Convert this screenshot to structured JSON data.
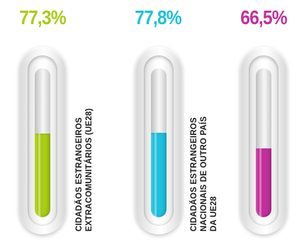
{
  "chart_data": {
    "type": "bar",
    "orientation": "vertical",
    "style": "thermometer gauges",
    "ylim": [
      0,
      100
    ],
    "unit": "%",
    "values": [
      77.3,
      77.8,
      66.5
    ],
    "labels": [
      "77,3%",
      "77,8%",
      "66,5%"
    ],
    "colors": [
      "#a9cc14",
      "#1fc0dd",
      "#c22f9c"
    ],
    "categories": [
      "CIDADÃOS ESTRANGEIROS\nEXTRACOMUNITÁRIOS (UE28)",
      "CIDADÃOS ESTRANGEIROS\nNACIONAIS DE OUTRO PAÍS\nDA UE28",
      ""
    ]
  }
}
